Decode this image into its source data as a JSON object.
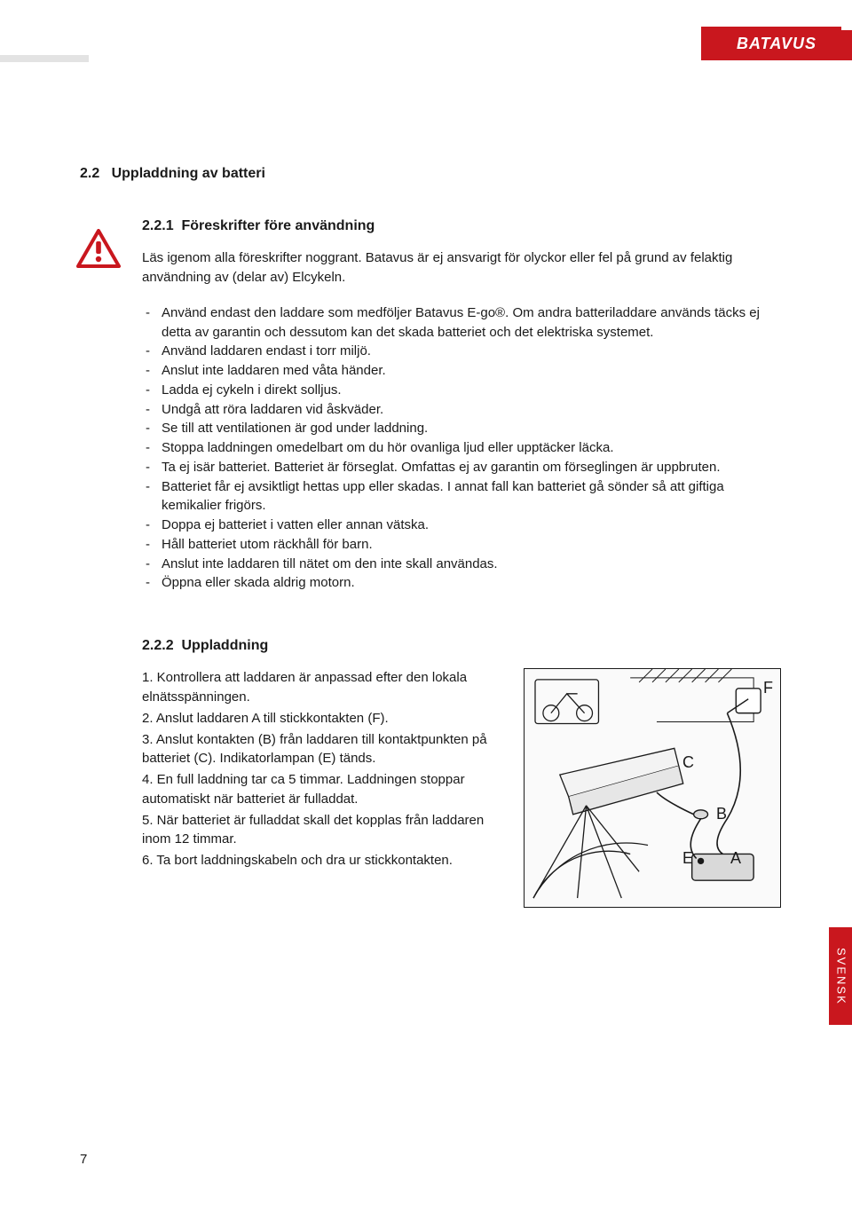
{
  "brand": "BATAVUS",
  "side_tab": "SVENSK",
  "page_number": "7",
  "colors": {
    "accent": "#c9171e",
    "text": "#1a1a1a",
    "bg": "#ffffff"
  },
  "section_main": {
    "num": "2.2",
    "title": "Uppladdning av batteri"
  },
  "section_sub1": {
    "num": "2.2.1",
    "title": "Föreskrifter före användning"
  },
  "intro": "Läs igenom alla föreskrifter noggrant. Batavus är ej ansvarigt för olyckor eller fel på grund av felaktig användning av (delar av) Elcykeln.",
  "bullets": [
    "Använd endast den laddare som medföljer Batavus E-go®. Om andra batteriladdare används täcks ej detta av garantin och dessutom kan det skada batteriet och det elektriska systemet.",
    "Använd laddaren endast i torr miljö.",
    "Anslut inte laddaren med våta händer.",
    "Ladda ej cykeln i direkt solljus.",
    "Undgå att röra laddaren vid åskväder.",
    "Se till att ventilationen är god under laddning.",
    "Stoppa laddningen omedelbart om du hör ovanliga ljud eller upptäcker läcka.",
    "Ta ej isär batteriet. Batteriet är förseglat. Omfattas ej av garantin om förseglingen är uppbruten.",
    "Batteriet får ej avsiktligt hettas upp eller skadas. I annat fall kan batteriet gå sönder så att giftiga kemikalier frigörs.",
    "Doppa ej batteriet i vatten eller annan vätska.",
    "Håll batteriet utom räckhåll för barn.",
    "Anslut inte laddaren till nätet om den inte skall användas.",
    "Öppna eller skada aldrig motorn."
  ],
  "section_sub2": {
    "num": "2.2.2",
    "title": "Uppladdning"
  },
  "steps": [
    "Kontrollera att laddaren är anpassad efter den lokala elnätsspänningen.",
    "Anslut laddaren A till stickkontakten (F).",
    "Anslut kontakten (B) från laddaren till kontaktpunkten på batteriet (C). Indikatorlampan (E) tänds.",
    "En full laddning tar ca 5 timmar. Laddningen stoppar automatiskt när batteriet är fulladdat.",
    "När batteriet är fulladdat skall det kopplas från laddaren inom 12 timmar.",
    "Ta bort laddningskabeln och dra ur stickkontakten."
  ],
  "figure_labels": {
    "F": "F",
    "C": "C",
    "B": "B",
    "E": "E",
    "A": "A"
  }
}
